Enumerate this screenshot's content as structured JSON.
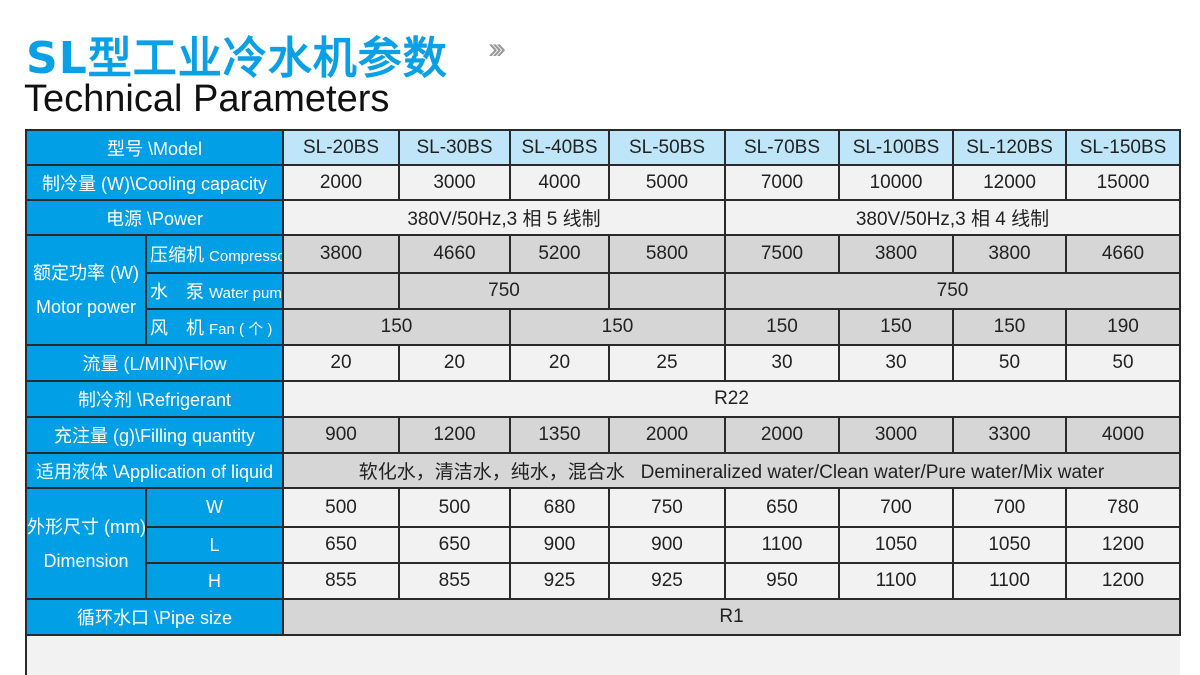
{
  "title_cn": "SL型工业冷水机参数",
  "title_icon": "chevrons-right-icon",
  "title_en": "Technical Parameters",
  "colors": {
    "accent": "#009fe6",
    "header_row": "#bfe5f9",
    "light_row": "#f2f2f2",
    "gray_row": "#d6d6d6"
  },
  "table": {
    "model_label": "型号 \\Model",
    "models": [
      "SL-20BS",
      "SL-30BS",
      "SL-40BS",
      "SL-50BS",
      "SL-70BS",
      "SL-100BS",
      "SL-120BS",
      "SL-150BS"
    ],
    "cooling_label": "制冷量 (W)\\Cooling capacity",
    "cooling": [
      "2000",
      "3000",
      "4000",
      "5000",
      "7000",
      "10000",
      "12000",
      "15000"
    ],
    "power_label": "电源 \\Power",
    "power": [
      "380V/50Hz,3 相 5 线制",
      "380V/50Hz,3 相 4 线制"
    ],
    "motor_label_cn": "额定功率 (W)",
    "motor_label_en": "Motor power",
    "compressor_label_cn": "压缩机",
    "compressor_label_en": "Compressor",
    "compressor": [
      "3800",
      "4660",
      "5200",
      "5800",
      "7500",
      "3800",
      "3800",
      "4660"
    ],
    "pump_label_cn": "水　泵",
    "pump_label_en": "Water pump",
    "pump": [
      "",
      "750",
      "",
      "750"
    ],
    "fan_label_cn": "风　机",
    "fan_label_en": "Fan ( 个 )",
    "fan": [
      "150",
      "150",
      "150",
      "150",
      "150",
      "190"
    ],
    "flow_label": "流量 (L/MIN)\\Flow",
    "flow": [
      "20",
      "20",
      "20",
      "25",
      "30",
      "30",
      "50",
      "50"
    ],
    "refrigerant_label": "制冷剂 \\Refrigerant",
    "refrigerant": "R22",
    "filling_label": "充注量 (g)\\Filling quantity",
    "filling": [
      "900",
      "1200",
      "1350",
      "2000",
      "2000",
      "3000",
      "3300",
      "4000"
    ],
    "liquid_label": "适用液体 \\Application of liquid",
    "liquid_cn": "软化水，清洁水，纯水，混合水",
    "liquid_en": "Demineralized water/Clean water/Pure water/Mix water",
    "dimension_label_cn": "外形尺寸 (mm)",
    "dimension_label_en": "Dimension",
    "dim_w_label": "W",
    "dim_l_label": "L",
    "dim_h_label": "H",
    "dim_w": [
      "500",
      "500",
      "680",
      "750",
      "650",
      "700",
      "700",
      "780"
    ],
    "dim_l": [
      "650",
      "650",
      "900",
      "900",
      "1100",
      "1050",
      "1050",
      "1200"
    ],
    "dim_h": [
      "855",
      "855",
      "925",
      "925",
      "950",
      "1100",
      "1100",
      "1200"
    ],
    "pipe_label": "循环水口 \\Pipe size",
    "pipe": "R1"
  }
}
